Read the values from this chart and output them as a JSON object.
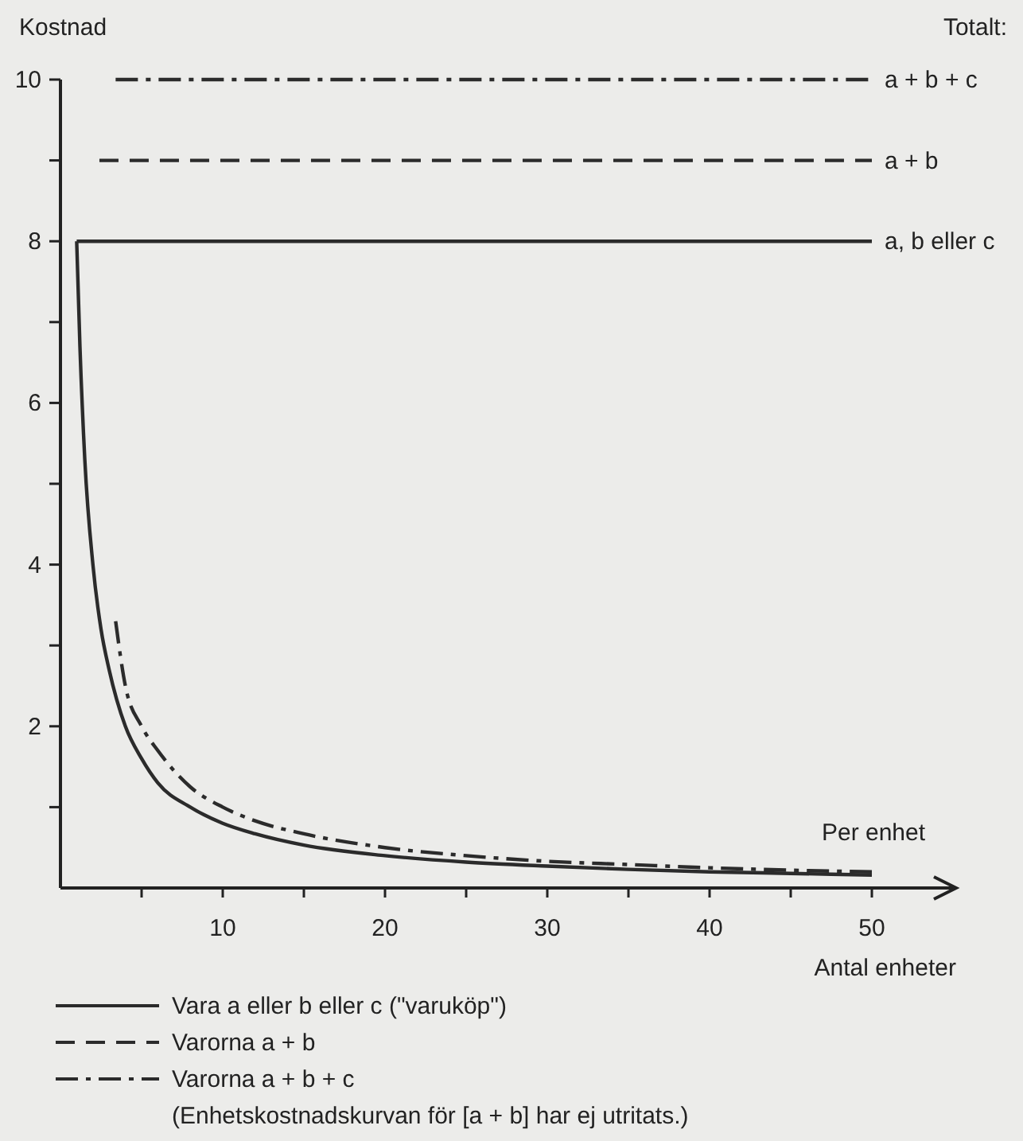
{
  "chart_data": {
    "type": "line",
    "xlabel": "Antal enheter",
    "ylabel": "Kostnad",
    "xlim": [
      0,
      55
    ],
    "ylim": [
      0,
      10
    ],
    "xticks": [
      {
        "value": 5,
        "label": null
      },
      10,
      {
        "value": 15,
        "label": null
      },
      20,
      {
        "value": 25,
        "label": null
      },
      30,
      {
        "value": 35,
        "label": null
      },
      40,
      {
        "value": 45,
        "label": null
      },
      50
    ],
    "yticks": [
      {
        "value": 1,
        "label": null
      },
      2,
      {
        "value": 3,
        "label": null
      },
      4,
      {
        "value": 5,
        "label": null
      },
      6,
      {
        "value": 7,
        "label": null
      },
      8,
      {
        "value": 9,
        "label": null
      },
      10
    ],
    "grid": false,
    "legend": "bottom",
    "marker": "none",
    "series": [
      {
        "name": "Vara a eller b eller c (\"varuköp\")",
        "color": "#2b2b2b",
        "line_style": "solid",
        "x": [
          1,
          50
        ],
        "values": [
          8,
          8
        ]
      },
      {
        "name": "Varorna a + b",
        "color": "#2b2b2b",
        "line_style": "dashed",
        "x": [
          2.4,
          50
        ],
        "values": [
          9,
          9
        ]
      },
      {
        "name": "Varorna a + b + c",
        "color": "#2b2b2b",
        "line_style": "dashdot",
        "x": [
          3.4,
          50
        ],
        "values": [
          10,
          10
        ]
      },
      {
        "color": "#2b2b2b",
        "line_style": "solid",
        "x": [
          1,
          1.2,
          1.5,
          2,
          2.5,
          3,
          4,
          5,
          6,
          8,
          10,
          12,
          15,
          20,
          25,
          30,
          35,
          40,
          45,
          50
        ],
        "values": [
          8,
          6.7,
          5.3,
          4,
          3.2,
          2.7,
          2,
          1.6,
          1.3,
          1,
          0.8,
          0.67,
          0.53,
          0.4,
          0.32,
          0.27,
          0.23,
          0.2,
          0.18,
          0.16
        ]
      },
      {
        "color": "#2b2b2b",
        "line_style": "dashdot",
        "x": [
          3.4,
          4,
          5,
          6,
          8,
          10,
          12,
          15,
          20,
          25,
          30,
          35,
          40,
          45,
          50
        ],
        "values": [
          3.3,
          2.5,
          2,
          1.7,
          1.25,
          1,
          0.83,
          0.67,
          0.5,
          0.4,
          0.33,
          0.29,
          0.25,
          0.22,
          0.2
        ]
      }
    ],
    "annotations": [
      "Totalt:",
      "a + b + c",
      "a + b",
      "a, b eller c",
      "Per enhet",
      "(Enhetskostnadskurvan för [a + b] har ej utritats.)"
    ]
  }
}
